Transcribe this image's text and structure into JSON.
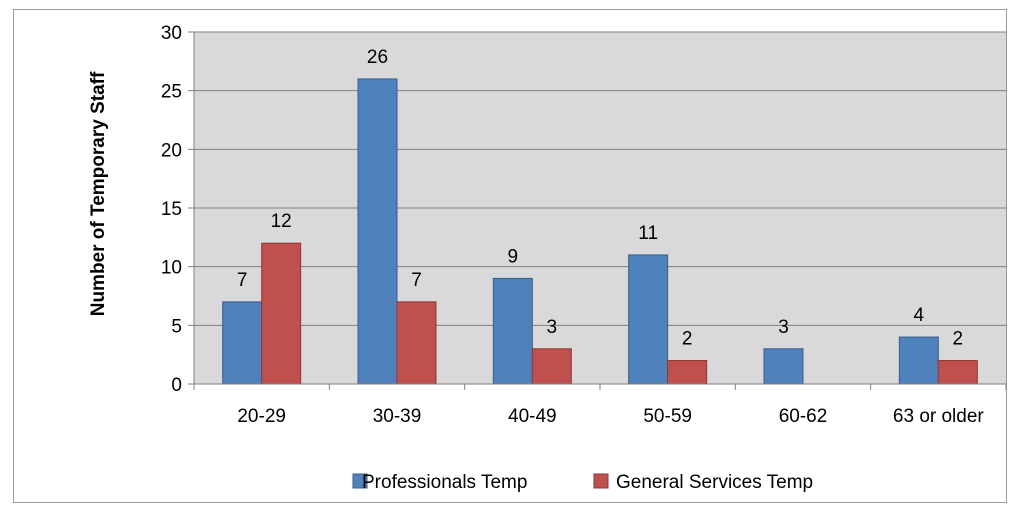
{
  "chart_data": {
    "type": "bar",
    "title": "",
    "xlabel": "",
    "ylabel": "Number of Temporary Staff",
    "categories": [
      "20-29",
      "30-39",
      "40-49",
      "50-59",
      "60-62",
      "63 or older"
    ],
    "series": [
      {
        "name": "Professionals Temp",
        "color": "#4F81BD",
        "values": [
          7,
          26,
          9,
          11,
          3,
          4
        ]
      },
      {
        "name": "General Services Temp",
        "color": "#C0504D",
        "values": [
          12,
          7,
          3,
          2,
          null,
          2
        ]
      }
    ],
    "ylim": [
      0,
      30
    ],
    "yticks": [
      0,
      5,
      10,
      15,
      20,
      25,
      30
    ],
    "grid": true,
    "legend_position": "bottom",
    "plot_background": "#D9D9D9"
  }
}
